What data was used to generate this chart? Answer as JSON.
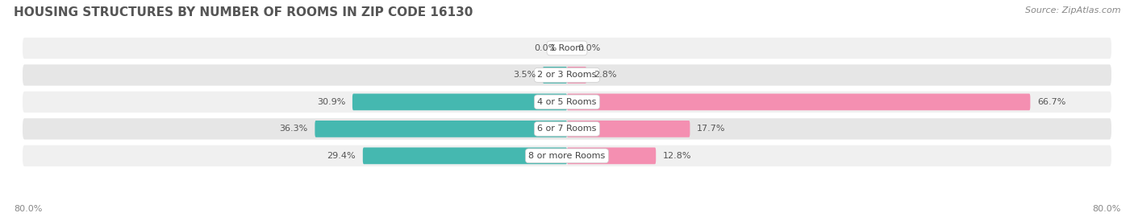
{
  "title": "Housing Structures by Number of Rooms in Zip Code 16130",
  "source": "Source: ZipAtlas.com",
  "categories": [
    "1 Room",
    "2 or 3 Rooms",
    "4 or 5 Rooms",
    "6 or 7 Rooms",
    "8 or more Rooms"
  ],
  "owner_values": [
    0.0,
    3.5,
    30.9,
    36.3,
    29.4
  ],
  "renter_values": [
    0.0,
    2.8,
    66.7,
    17.7,
    12.8
  ],
  "owner_color": "#45b8b0",
  "renter_color": "#f48fb1",
  "row_colors": [
    "#f0f0f0",
    "#e6e6e6"
  ],
  "axis_min": -80.0,
  "axis_max": 80.0,
  "figsize": [
    14.06,
    2.7
  ],
  "dpi": 100,
  "title_fontsize": 11,
  "source_fontsize": 8,
  "bar_label_fontsize": 8,
  "cat_label_fontsize": 8,
  "legend_fontsize": 8.5,
  "axis_tick_fontsize": 8,
  "background_color": "#ffffff",
  "left_axis_label": "80.0%",
  "right_axis_label": "80.0%",
  "bar_height": 0.62
}
